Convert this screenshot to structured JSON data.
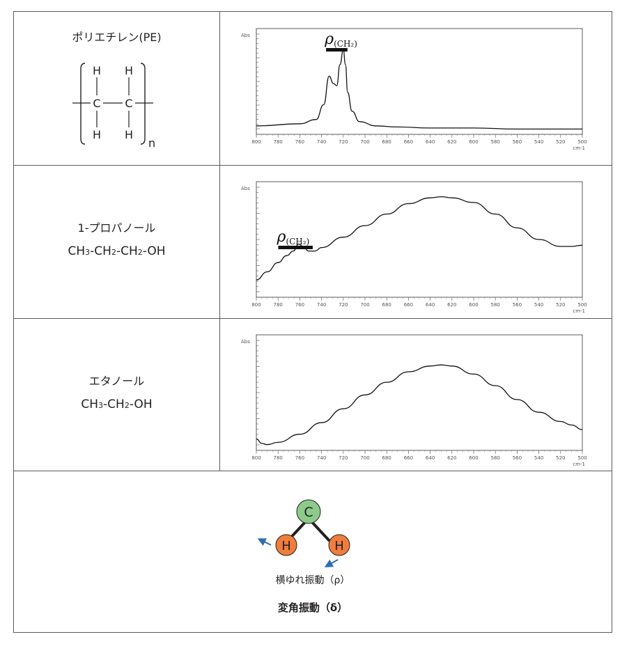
{
  "rows": [
    {
      "name": "ポリエチレン(PE)",
      "structure": {
        "atom_h": "H",
        "atom_c": "C",
        "subscript": "n"
      }
    },
    {
      "name": "1-プロパノール",
      "formula": [
        "CH",
        "3",
        "-CH",
        "2",
        "-CH",
        "2",
        "-OH"
      ]
    },
    {
      "name": "エタノール",
      "formula": [
        "CH",
        "3",
        "-CH",
        "2",
        "-OH"
      ]
    }
  ],
  "peak_label": {
    "symbol": "ρ",
    "sub": "(CH₂)"
  },
  "bottom": {
    "atom_c": "C",
    "atom_h": "H",
    "caption1": "横ゆれ振動（ρ）",
    "caption2": "変角振動（δ）",
    "colors": {
      "carbon": "#8ccb8a",
      "hydrogen": "#ef7d3c",
      "arrow": "#2e6db4",
      "bond": "#231f20"
    }
  },
  "chart_data": [
    {
      "type": "line",
      "ylabel": "Abs",
      "xlabel": "cm-1",
      "xlim": [
        800,
        500
      ],
      "x_ticks": [
        800,
        780,
        760,
        740,
        720,
        700,
        680,
        660,
        640,
        620,
        600,
        580,
        560,
        540,
        520,
        500
      ],
      "x_tick_labels": [
        "800",
        "780",
        "760",
        "740",
        "720",
        "700",
        "680",
        "660",
        "640",
        "620",
        "600",
        "580",
        "560",
        "540",
        "520",
        "500"
      ],
      "ylim": [
        0,
        1
      ],
      "series": [
        {
          "x": [
            800,
            760,
            745,
            738,
            733,
            729,
            726,
            723,
            720,
            718,
            716,
            712,
            705,
            690,
            670,
            640,
            600,
            560,
            520,
            500
          ],
          "y": [
            0.08,
            0.1,
            0.14,
            0.28,
            0.55,
            0.48,
            0.46,
            0.66,
            0.8,
            0.66,
            0.4,
            0.22,
            0.12,
            0.08,
            0.07,
            0.06,
            0.06,
            0.05,
            0.05,
            0.05
          ]
        }
      ],
      "annotation": "ρ(CH₂)"
    },
    {
      "type": "line",
      "ylabel": "Abs",
      "xlabel": "cm-1",
      "xlim": [
        800,
        500
      ],
      "x_ticks": [
        800,
        780,
        760,
        740,
        720,
        700,
        680,
        660,
        640,
        620,
        600,
        580,
        560,
        540,
        520,
        500
      ],
      "x_tick_labels": [
        "800",
        "780",
        "760",
        "740",
        "720",
        "700",
        "680",
        "660",
        "640",
        "620",
        "600",
        "580",
        "560",
        "540",
        "520",
        "500"
      ],
      "ylim": [
        0,
        1
      ],
      "series": [
        {
          "x": [
            800,
            790,
            780,
            772,
            766,
            761,
            757,
            752,
            746,
            740,
            720,
            700,
            680,
            660,
            640,
            630,
            620,
            600,
            580,
            560,
            540,
            520,
            510,
            500
          ],
          "y": [
            0.15,
            0.22,
            0.3,
            0.36,
            0.4,
            0.46,
            0.44,
            0.4,
            0.4,
            0.43,
            0.52,
            0.62,
            0.72,
            0.81,
            0.86,
            0.87,
            0.86,
            0.82,
            0.72,
            0.6,
            0.5,
            0.44,
            0.44,
            0.45
          ]
        }
      ],
      "annotation": "ρ(CH₂)"
    },
    {
      "type": "line",
      "ylabel": "Abs",
      "xlabel": "cm-1",
      "xlim": [
        800,
        500
      ],
      "x_ticks": [
        800,
        780,
        760,
        740,
        720,
        700,
        680,
        660,
        640,
        620,
        600,
        580,
        560,
        540,
        520,
        500
      ],
      "x_tick_labels": [
        "800",
        "780",
        "760",
        "740",
        "720",
        "700",
        "680",
        "660",
        "640",
        "620",
        "600",
        "580",
        "560",
        "540",
        "520",
        "500"
      ],
      "ylim": [
        0,
        1
      ],
      "series": [
        {
          "x": [
            800,
            795,
            790,
            780,
            760,
            740,
            720,
            700,
            680,
            660,
            640,
            630,
            620,
            600,
            580,
            560,
            540,
            520,
            510,
            500
          ],
          "y": [
            0.1,
            0.06,
            0.05,
            0.07,
            0.14,
            0.24,
            0.36,
            0.48,
            0.59,
            0.68,
            0.73,
            0.74,
            0.73,
            0.66,
            0.56,
            0.44,
            0.33,
            0.25,
            0.22,
            0.18
          ]
        }
      ]
    }
  ]
}
